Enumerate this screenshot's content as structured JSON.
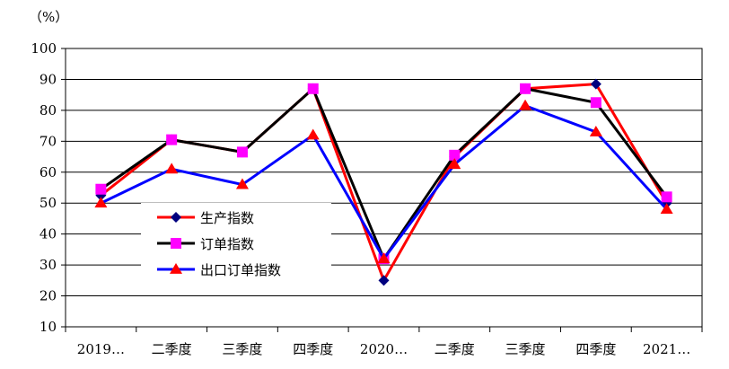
{
  "chart_data": {
    "type": "line",
    "unit_label": "（%）",
    "categories": [
      "2019…",
      "二季度",
      "三季度",
      "四季度",
      "2020…",
      "二季度",
      "三季度",
      "四季度",
      "2021…"
    ],
    "ylim": [
      10,
      100
    ],
    "yticks": [
      10,
      20,
      30,
      40,
      50,
      60,
      70,
      80,
      90,
      100
    ],
    "grid": true,
    "legend_position": "center-left",
    "series": [
      {
        "name": "生产指数",
        "color": "#ff0000",
        "marker": "diamond",
        "marker_color": "#00007f",
        "values": [
          52.5,
          70.5,
          66.5,
          87,
          25,
          65,
          87,
          88.5,
          50
        ]
      },
      {
        "name": "订单指数",
        "color": "#000000",
        "marker": "square",
        "marker_color": "#ff00ff",
        "values": [
          54.5,
          70.5,
          66.5,
          87,
          32,
          65.5,
          87,
          82.5,
          52
        ]
      },
      {
        "name": "出口订单指数",
        "color": "#0000ff",
        "marker": "triangle",
        "marker_color": "#ff0000",
        "values": [
          50,
          61,
          56,
          72,
          32,
          62.5,
          81.5,
          73,
          48
        ]
      }
    ]
  }
}
